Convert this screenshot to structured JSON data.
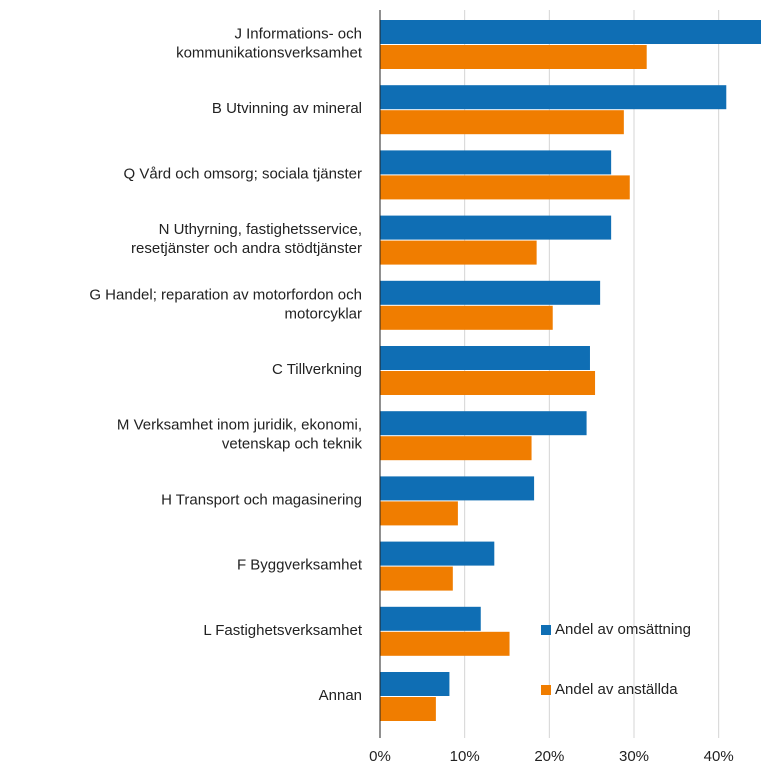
{
  "chart_data": {
    "type": "barh",
    "categories": [
      "J Informations- och\nkommunikationsverksamhet",
      "B Utvinning av mineral",
      "Q Vård och omsorg; sociala tjänster",
      "N Uthyrning, fastighetsservice,\nresetjänster och andra stödtjänster",
      "G Handel; reparation av motorfordon och\nmotorcyklar",
      "C Tillverkning",
      "M Verksamhet inom juridik, ekonomi,\nvetenskap och teknik",
      "H Transport och magasinering",
      "F Byggverksamhet",
      "L Fastighetsverksamhet",
      "Annan"
    ],
    "series": [
      {
        "name": "Andel av omsättning",
        "color": "#0f6eb4",
        "values": [
          45,
          40.9,
          27.3,
          27.3,
          26.0,
          24.8,
          24.4,
          18.2,
          13.5,
          11.9,
          8.2
        ]
      },
      {
        "name": "Andel av anställda",
        "color": "#f07d00",
        "values": [
          31.5,
          28.8,
          29.5,
          18.5,
          20.4,
          25.4,
          17.9,
          9.2,
          8.6,
          15.3,
          6.6
        ]
      }
    ],
    "xlim": [
      0,
      45
    ],
    "xticks": [
      {
        "value": 0,
        "label": "0%"
      },
      {
        "value": 10,
        "label": "10%"
      },
      {
        "value": 20,
        "label": "20%"
      },
      {
        "value": 30,
        "label": "30%"
      },
      {
        "value": 40,
        "label": "40%"
      }
    ],
    "grid": true,
    "legend": "lower right"
  }
}
